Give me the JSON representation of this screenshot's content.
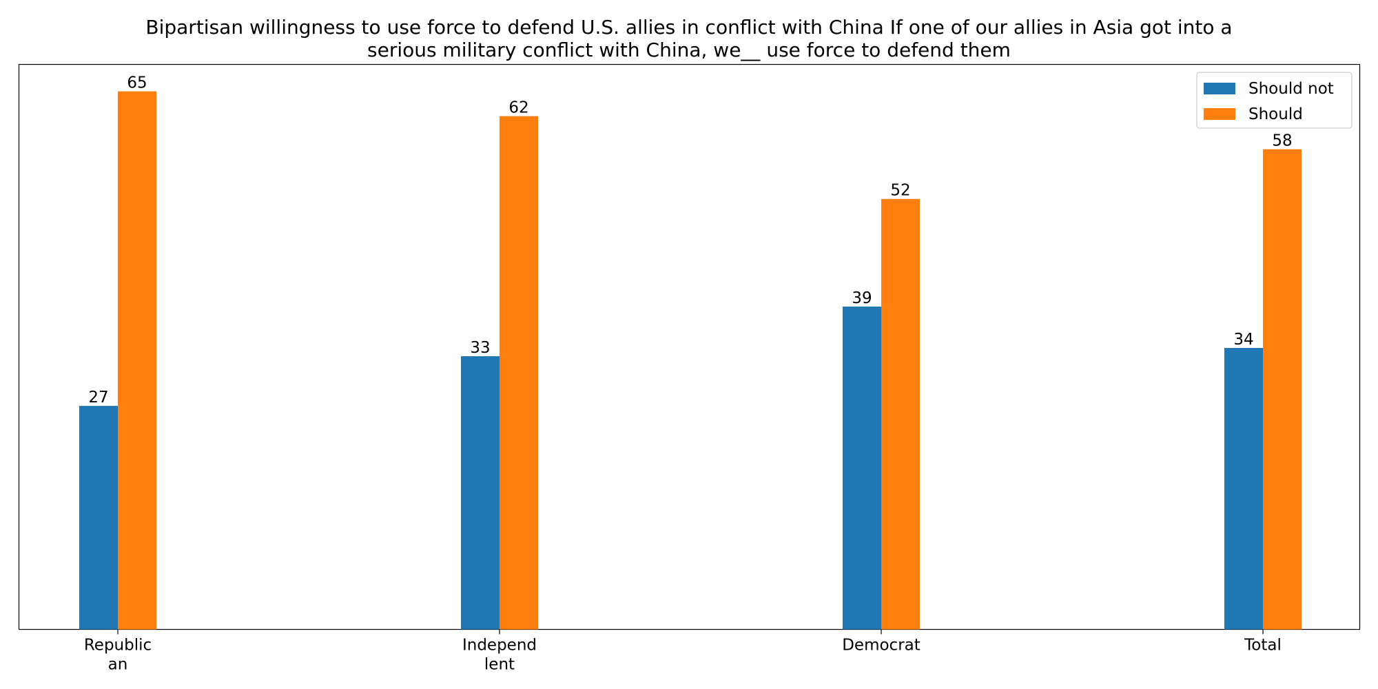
{
  "chart_data": {
    "type": "bar",
    "title_lines": [
      "Bipartisan willingness to use force to defend U.S. allies in conflict with China If one of our allies in Asia got into a",
      "serious military conflict with China, we__ use force to defend them"
    ],
    "xlabel": "",
    "ylabel": "",
    "categories": [
      [
        "Republic",
        "an"
      ],
      [
        "Independ",
        "lent"
      ],
      [
        "Democrat"
      ],
      [
        "Total"
      ]
    ],
    "series": [
      {
        "name": "Should not",
        "color": "#1f77b4",
        "values": [
          27,
          33,
          39,
          34
        ]
      },
      {
        "name": "Should",
        "color": "#ff7f0e",
        "values": [
          65,
          62,
          52,
          58
        ]
      }
    ],
    "ylim": [
      0,
      68.25
    ],
    "grid": false,
    "legend_position": "top-right",
    "y_axis_visible": false
  }
}
